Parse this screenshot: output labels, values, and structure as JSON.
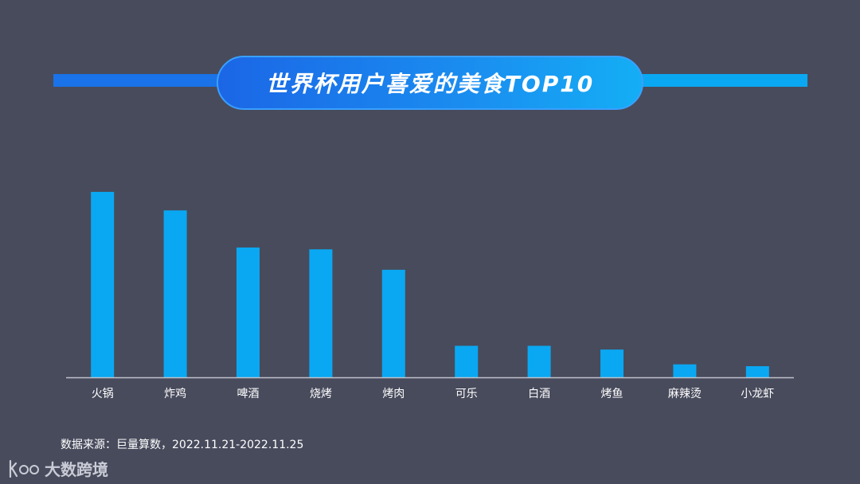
{
  "title": "世界杯用户喜爱的美食TOP10",
  "source_text": "数据来源：巨量算数，2022.11.21-2022.11.25",
  "logo": {
    "mark": "KOO",
    "text": "大数跨境"
  },
  "colors": {
    "background": "#484b5c",
    "bar": "#0aa8f2",
    "axis": "#bfc2cc",
    "text": "#ffffff"
  },
  "chart_data": {
    "type": "bar",
    "title": "",
    "xlabel": "",
    "ylabel": "",
    "categories": [
      "火锅",
      "炸鸡",
      "啤酒",
      "烧烤",
      "烤肉",
      "可乐",
      "白酒",
      "烤鱼",
      "麻辣烫",
      "小龙虾"
    ],
    "values": [
      100,
      90,
      70,
      69,
      58,
      17,
      17,
      15,
      7,
      6
    ],
    "ylim": [
      0,
      100
    ],
    "grid": false,
    "legend": "none"
  }
}
